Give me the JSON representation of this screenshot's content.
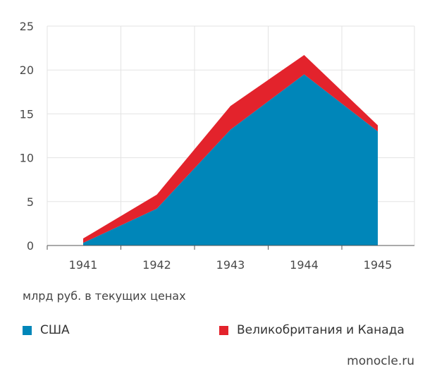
{
  "chart_data": {
    "type": "area",
    "stacked": true,
    "x": [
      "1941",
      "1942",
      "1943",
      "1944",
      "1945"
    ],
    "series": [
      {
        "name": "США",
        "values": [
          0.3,
          4.2,
          13.2,
          19.5,
          13.0
        ],
        "color": "#0086b9"
      },
      {
        "name": "Великобритания и Канада",
        "values": [
          0.5,
          1.6,
          2.7,
          2.2,
          0.7
        ],
        "color": "#e3232c"
      }
    ],
    "yticks": [
      "0",
      "5",
      "10",
      "15",
      "20",
      "25"
    ],
    "ylim": [
      0,
      25
    ],
    "grid": true,
    "legend_position": "bottom",
    "unit_note": "млрд руб. в текущих ценах"
  },
  "source": "monocle.ru"
}
